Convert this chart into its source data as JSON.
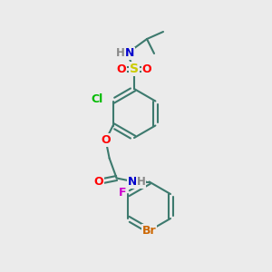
{
  "bg_color": "#ebebeb",
  "bond_color": "#3d7a6e",
  "atom_colors": {
    "O": "#ff0000",
    "S": "#cccc00",
    "N": "#0000cc",
    "Cl": "#00bb00",
    "F": "#cc00cc",
    "Br": "#cc6600",
    "H": "#888888",
    "C": "#3d7a6e"
  }
}
